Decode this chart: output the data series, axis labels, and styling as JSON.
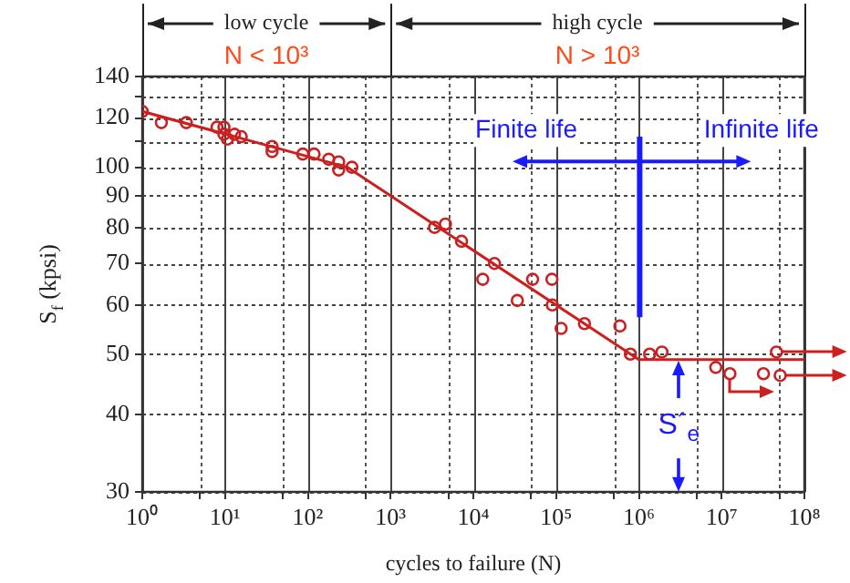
{
  "chart_data": {
    "type": "scatter",
    "xlabel": "cycles to failure (N)",
    "ylabel": "S$_{f}$ (kpsi)",
    "log": "xy",
    "grid": true,
    "legend": false,
    "marker": "circle",
    "xlim": [
      1,
      100000000
    ],
    "xticks": [
      {
        "value": 1,
        "label": "10⁰"
      },
      {
        "value": 5,
        "label": null
      },
      {
        "value": 10,
        "label": "10¹"
      },
      {
        "value": 50,
        "label": null
      },
      {
        "value": 100,
        "label": "10²"
      },
      {
        "value": 500,
        "label": null
      },
      {
        "value": 1000,
        "label": "10³"
      },
      {
        "value": 5000,
        "label": null
      },
      {
        "value": 10000,
        "label": "10⁴"
      },
      {
        "value": 50000,
        "label": null
      },
      {
        "value": 100000,
        "label": "10⁵"
      },
      {
        "value": 500000,
        "label": null
      },
      {
        "value": 1000000,
        "label": "10⁶"
      },
      {
        "value": 5000000,
        "label": null
      },
      {
        "value": 10000000,
        "label": "10⁷"
      },
      {
        "value": 50000000,
        "label": null
      },
      {
        "value": 100000000,
        "label": "10⁸"
      }
    ],
    "ylim": [
      30,
      140
    ],
    "yticks": [
      30,
      40,
      50,
      60,
      70,
      80,
      90,
      100,
      {
        "value": 110,
        "label": null
      },
      120,
      {
        "value": 130,
        "label": null
      },
      140
    ],
    "series": [
      {
        "color": "#cc2020",
        "x": [
          1,
          1.7,
          3.4,
          8,
          9.7,
          9.7,
          10.7,
          13,
          15.7,
          37,
          37,
          87,
          119,
          179,
          236,
          236,
          341,
          3400,
          4600,
          7200,
          18000,
          13000,
          34000,
          52000,
          89000,
          90000,
          115000,
          220000,
          590000,
          790000,
          1350000,
          1900000,
          8500000,
          12600000,
          32000000,
          46000000,
          51000000
        ],
        "values": [
          123,
          118,
          118,
          116,
          116,
          113,
          111,
          113,
          112,
          108,
          106,
          105,
          105,
          103,
          102,
          99,
          100,
          80,
          81,
          76,
          70,
          66,
          61,
          66,
          66,
          60,
          55,
          56,
          55.5,
          50,
          50,
          50.4,
          47.6,
          46.5,
          46.5,
          50.4,
          46.2
        ]
      },
      {
        "type": "line",
        "color": "#cc2020",
        "marker": "none",
        "line_style": "solid",
        "x": [
          1,
          300,
          1000000,
          100000000
        ],
        "values": [
          123,
          100,
          49,
          49
        ]
      }
    ],
    "annotations": [
      "N < 10³",
      "N > 10³",
      "Finite life",
      "Infinite life",
      "S´$_{e}$",
      "low cycle",
      "high cycle"
    ]
  }
}
